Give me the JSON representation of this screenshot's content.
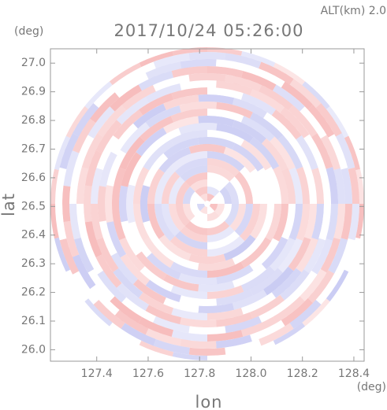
{
  "chart_data": {
    "type": "radar-ppi",
    "title": "2017/10/24 05:26:00",
    "subtitle": "ALT(km)  2.0",
    "xlabel": "lon",
    "ylabel": "lat",
    "xunit": "(deg)",
    "yunit": "(deg)",
    "xlim": [
      127.22,
      128.44
    ],
    "ylim": [
      25.96,
      27.05
    ],
    "xticks": [
      127.4,
      127.6,
      127.8,
      {
        "value": 128,
        "label": "128.0"
      },
      128.2,
      128.4
    ],
    "yticks": [
      {
        "value": 26,
        "label": "26.0"
      },
      26.1,
      26.2,
      26.3,
      26.4,
      26.5,
      26.6,
      26.7,
      26.8,
      26.9,
      {
        "value": 27,
        "label": "27.0"
      }
    ]
  }
}
